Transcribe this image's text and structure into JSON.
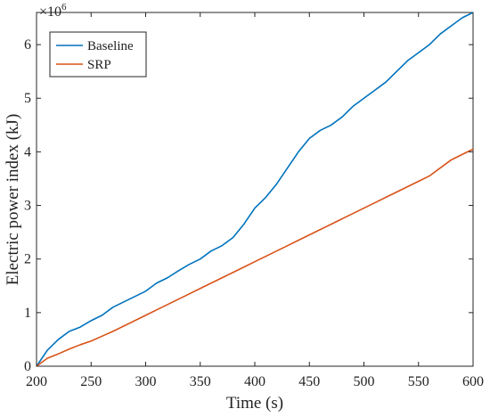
{
  "chart_data": {
    "type": "line",
    "title": "",
    "xlabel": "Time (s)",
    "ylabel": "Electric power index (kJ)",
    "xlim": [
      200,
      600
    ],
    "ylim": [
      0,
      6600000
    ],
    "x_ticks": [
      200,
      250,
      300,
      350,
      400,
      450,
      500,
      550,
      600
    ],
    "y_ticks": [
      0,
      1000000,
      2000000,
      3000000,
      4000000,
      5000000,
      6000000
    ],
    "y_tick_labels": [
      "0",
      "1",
      "2",
      "3",
      "4",
      "5",
      "6"
    ],
    "y_exponent_base": "×10",
    "y_exponent_power": "6",
    "grid": false,
    "legend_position": "top-left",
    "series": [
      {
        "name": "Baseline",
        "color": "#0072BD",
        "x": [
          200,
          210,
          220,
          230,
          240,
          250,
          260,
          270,
          280,
          290,
          300,
          310,
          320,
          330,
          340,
          350,
          360,
          370,
          380,
          390,
          400,
          410,
          420,
          430,
          440,
          450,
          460,
          470,
          480,
          490,
          500,
          510,
          520,
          530,
          540,
          550,
          560,
          570,
          580,
          590,
          600
        ],
        "y": [
          0,
          300000,
          500000,
          650000,
          730000,
          850000,
          950000,
          1100000,
          1200000,
          1300000,
          1400000,
          1550000,
          1650000,
          1780000,
          1900000,
          2000000,
          2150000,
          2250000,
          2400000,
          2650000,
          2950000,
          3150000,
          3400000,
          3700000,
          4000000,
          4250000,
          4400000,
          4500000,
          4650000,
          4850000,
          5000000,
          5150000,
          5300000,
          5500000,
          5700000,
          5850000,
          6000000,
          6200000,
          6350000,
          6500000,
          6600000
        ]
      },
      {
        "name": "SRP",
        "color": "#D95319",
        "x": [
          200,
          210,
          220,
          230,
          240,
          250,
          260,
          270,
          280,
          290,
          300,
          310,
          320,
          330,
          340,
          350,
          360,
          370,
          380,
          390,
          400,
          410,
          420,
          430,
          440,
          450,
          460,
          470,
          480,
          490,
          500,
          510,
          520,
          530,
          540,
          550,
          560,
          570,
          580,
          590,
          600
        ],
        "y": [
          0,
          150000,
          230000,
          320000,
          400000,
          470000,
          560000,
          650000,
          750000,
          850000,
          950000,
          1050000,
          1150000,
          1250000,
          1350000,
          1450000,
          1550000,
          1650000,
          1750000,
          1850000,
          1950000,
          2050000,
          2150000,
          2250000,
          2350000,
          2450000,
          2550000,
          2650000,
          2750000,
          2850000,
          2950000,
          3050000,
          3150000,
          3250000,
          3350000,
          3450000,
          3550000,
          3700000,
          3850000,
          3950000,
          4050000
        ]
      }
    ]
  }
}
